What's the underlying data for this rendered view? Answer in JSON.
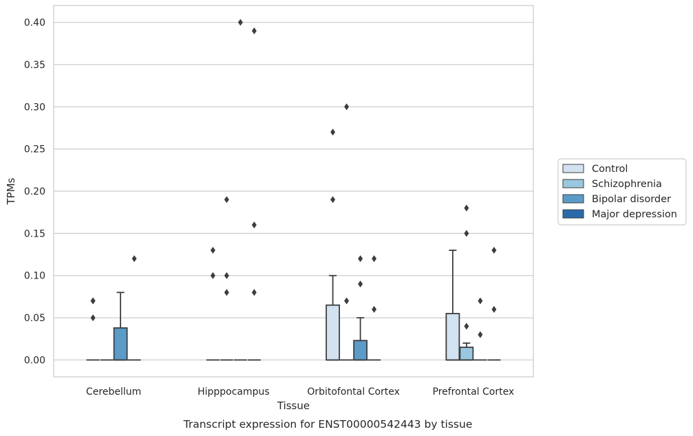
{
  "chart_data": {
    "type": "box",
    "title": "",
    "caption": "Transcript expression for ENST00000542443 by tissue",
    "xlabel": "Tissue",
    "ylabel": "TPMs",
    "ylim": [
      -0.02,
      0.42
    ],
    "yticks": [
      "0.00",
      "0.05",
      "0.10",
      "0.15",
      "0.20",
      "0.25",
      "0.30",
      "0.35",
      "0.40"
    ],
    "grid": "horizontal",
    "legend_position": "right",
    "categories": [
      "Cerebellum",
      "Hipppocampus",
      "Orbitofontal Cortex",
      "Prefrontal Cortex"
    ],
    "series": [
      {
        "name": "Control",
        "color": "#d2e2f1",
        "boxes": [
          {
            "q1": 0,
            "median": 0,
            "q3": 0,
            "whisker_low": 0,
            "whisker_high": 0,
            "outliers": [
              0.05,
              0.07,
              0.07
            ]
          },
          {
            "q1": 0,
            "median": 0,
            "q3": 0,
            "whisker_low": 0,
            "whisker_high": 0,
            "outliers": [
              0.1,
              0.13
            ]
          },
          {
            "q1": 0,
            "median": 0,
            "q3": 0.065,
            "whisker_low": 0,
            "whisker_high": 0.1,
            "outliers": [
              0.19,
              0.27
            ]
          },
          {
            "q1": 0,
            "median": 0,
            "q3": 0.055,
            "whisker_low": 0,
            "whisker_high": 0.13,
            "outliers": []
          }
        ]
      },
      {
        "name": "Schizophrenia",
        "color": "#9ac7e0",
        "boxes": [
          {
            "q1": 0,
            "median": 0,
            "q3": 0,
            "whisker_low": 0,
            "whisker_high": 0,
            "outliers": []
          },
          {
            "q1": 0,
            "median": 0,
            "q3": 0,
            "whisker_low": 0,
            "whisker_high": 0,
            "outliers": [
              0.08,
              0.1,
              0.19
            ]
          },
          {
            "q1": 0,
            "median": 0,
            "q3": 0,
            "whisker_low": 0,
            "whisker_high": 0,
            "outliers": [
              0.07,
              0.3
            ]
          },
          {
            "q1": 0,
            "median": 0,
            "q3": 0.015,
            "whisker_low": 0,
            "whisker_high": 0.02,
            "outliers": [
              0.04,
              0.15,
              0.18
            ]
          }
        ]
      },
      {
        "name": "Bipolar disorder",
        "color": "#5b9bc8",
        "boxes": [
          {
            "q1": 0,
            "median": 0,
            "q3": 0.038,
            "whisker_low": 0,
            "whisker_high": 0.08,
            "outliers": []
          },
          {
            "q1": 0,
            "median": 0,
            "q3": 0,
            "whisker_low": 0,
            "whisker_high": 0,
            "outliers": [
              0.4
            ]
          },
          {
            "q1": 0,
            "median": 0,
            "q3": 0.023,
            "whisker_low": 0,
            "whisker_high": 0.05,
            "outliers": [
              0.09,
              0.12
            ]
          },
          {
            "q1": 0,
            "median": 0,
            "q3": 0,
            "whisker_low": 0,
            "whisker_high": 0,
            "outliers": [
              0.03,
              0.07
            ]
          }
        ]
      },
      {
        "name": "Major depression",
        "color": "#2a6aaa",
        "boxes": [
          {
            "q1": 0,
            "median": 0,
            "q3": 0,
            "whisker_low": 0,
            "whisker_high": 0,
            "outliers": [
              0.12
            ]
          },
          {
            "q1": 0,
            "median": 0,
            "q3": 0,
            "whisker_low": 0,
            "whisker_high": 0,
            "outliers": [
              0.08,
              0.16,
              0.39
            ]
          },
          {
            "q1": 0,
            "median": 0,
            "q3": 0,
            "whisker_low": 0,
            "whisker_high": 0,
            "outliers": [
              0.06,
              0.12
            ]
          },
          {
            "q1": 0,
            "median": 0,
            "q3": 0,
            "whisker_low": 0,
            "whisker_high": 0,
            "outliers": [
              0.06,
              0.13
            ]
          }
        ]
      }
    ]
  }
}
